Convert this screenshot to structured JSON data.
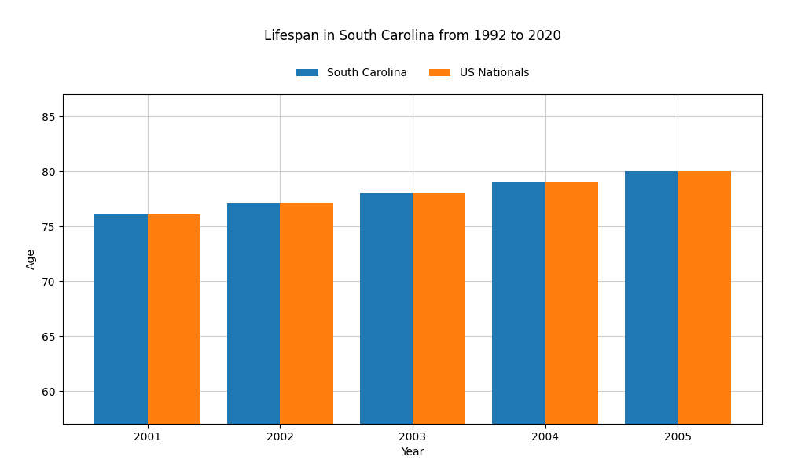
{
  "chart_data": {
    "type": "bar",
    "title": "Lifespan in South Carolina from 1992 to 2020",
    "x_label": "Year",
    "y_label": "Age",
    "categories": [
      "2001",
      "2002",
      "2003",
      "2004",
      "2005"
    ],
    "series": [
      {
        "name": "South Carolina",
        "values": [
          76.1,
          77.1,
          78.0,
          79.0,
          80.0
        ]
      },
      {
        "name": "US Nationals",
        "values": [
          76.1,
          77.1,
          78.0,
          79.0,
          80.0
        ]
      }
    ],
    "ylim": [
      57,
      87
    ],
    "yticks": [
      60,
      65,
      70,
      75,
      80,
      85
    ],
    "grid": true,
    "legend": "upper center"
  }
}
